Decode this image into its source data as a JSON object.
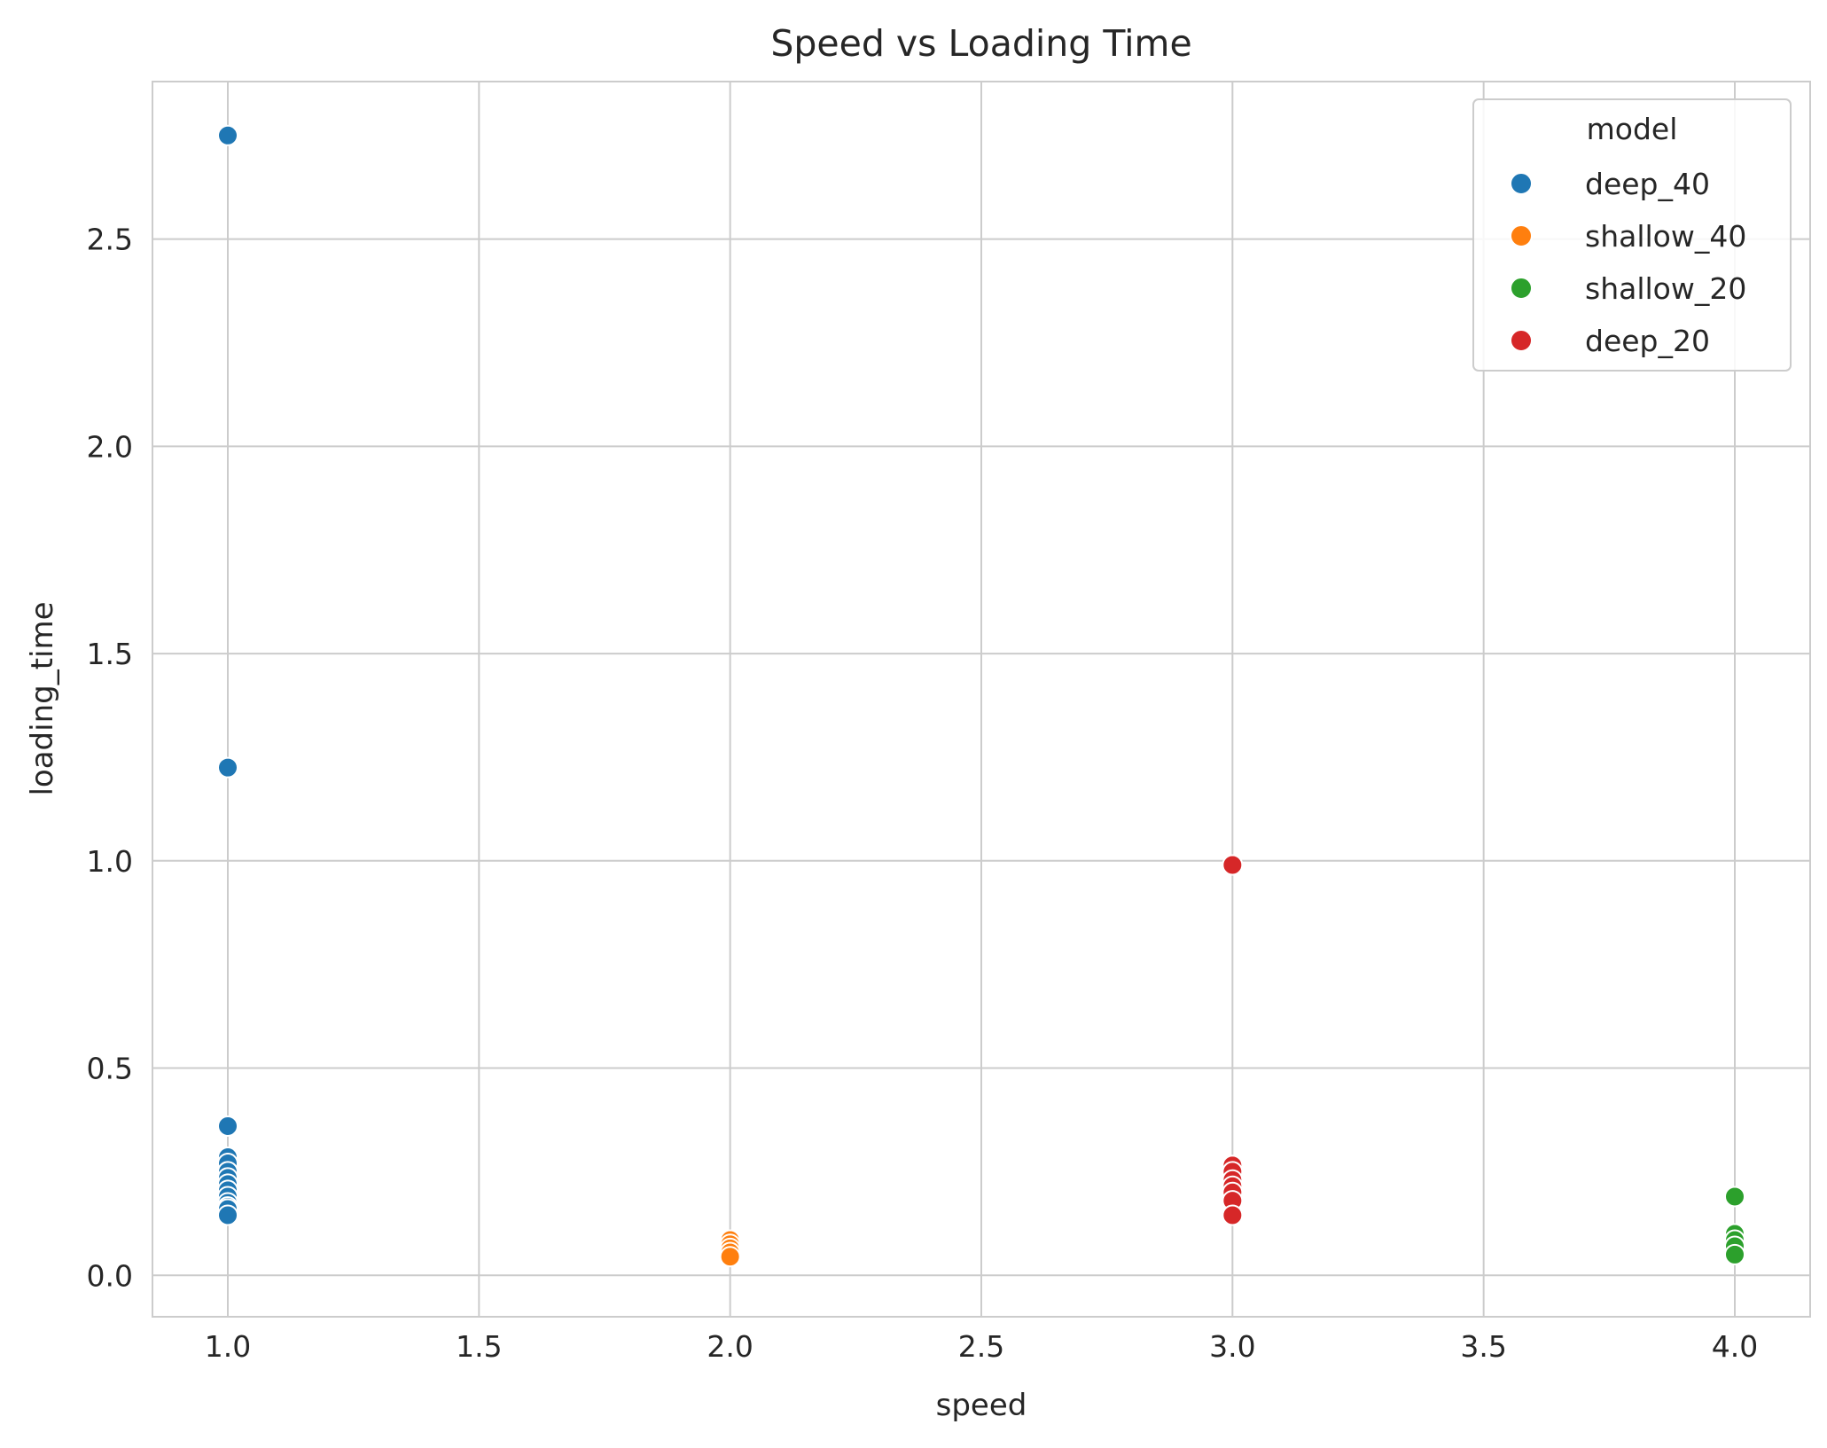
{
  "chart_data": {
    "type": "scatter",
    "title": "Speed vs Loading Time",
    "xlabel": "speed",
    "ylabel": "loading_time",
    "xlim": [
      0.85,
      4.15
    ],
    "ylim": [
      -0.1,
      2.88
    ],
    "xticks": [
      1.0,
      1.5,
      2.0,
      2.5,
      3.0,
      3.5,
      4.0
    ],
    "xtick_labels": [
      "1.0",
      "1.5",
      "2.0",
      "2.5",
      "3.0",
      "3.5",
      "4.0"
    ],
    "yticks": [
      0.0,
      0.5,
      1.0,
      1.5,
      2.0,
      2.5
    ],
    "ytick_labels": [
      "0.0",
      "0.5",
      "1.0",
      "1.5",
      "2.0",
      "2.5"
    ],
    "grid": true,
    "legend": {
      "title": "model",
      "placement": "top-right"
    },
    "series": [
      {
        "name": "deep_40",
        "color": "#1f77b4",
        "x": [
          1,
          1,
          1,
          1,
          1,
          1,
          1,
          1,
          1,
          1,
          1,
          1,
          1,
          1
        ],
        "y": [
          2.75,
          1.225,
          0.36,
          0.285,
          0.27,
          0.25,
          0.235,
          0.22,
          0.205,
          0.19,
          0.175,
          0.165,
          0.16,
          0.145
        ]
      },
      {
        "name": "shallow_40",
        "color": "#ff7f0e",
        "x": [
          2,
          2,
          2,
          2,
          2
        ],
        "y": [
          0.085,
          0.075,
          0.065,
          0.055,
          0.045
        ]
      },
      {
        "name": "shallow_20",
        "color": "#2ca02c",
        "x": [
          4,
          4,
          4,
          4,
          4
        ],
        "y": [
          0.19,
          0.1,
          0.085,
          0.07,
          0.05
        ]
      },
      {
        "name": "deep_20",
        "color": "#d62728",
        "x": [
          3,
          3,
          3,
          3,
          3,
          3,
          3,
          3
        ],
        "y": [
          0.99,
          0.265,
          0.25,
          0.23,
          0.215,
          0.2,
          0.18,
          0.145
        ]
      }
    ]
  }
}
